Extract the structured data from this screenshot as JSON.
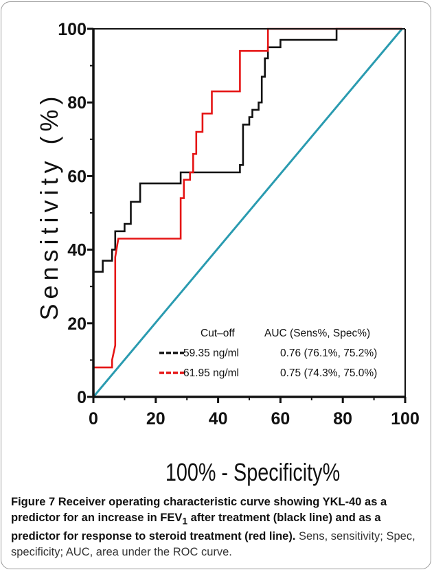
{
  "chart_data": {
    "type": "line",
    "xlabel": "100% - Specificity%",
    "ylabel": "Sensitivity (%)",
    "xlim": [
      0,
      100
    ],
    "ylim": [
      0,
      100
    ],
    "xticks": [
      "0",
      "20",
      "40",
      "60",
      "80",
      "100"
    ],
    "yticks": [
      "0",
      "20",
      "40",
      "60",
      "80",
      "100"
    ],
    "legend": {
      "placement": "bottom-right",
      "header_cutoff": "Cut–off",
      "header_auc": "AUC (Sens%, Spec%)",
      "entries": [
        {
          "cutoff": "59.35 ng/ml",
          "auc": "0.76 (76.1%, 75.2%)",
          "color": "#111111"
        },
        {
          "cutoff": "61.95 ng/ml",
          "auc": "0.75 (74.3%, 75.0%)",
          "color": "#e51515"
        }
      ]
    },
    "series": [
      {
        "color": "#111111",
        "points": [
          [
            0,
            34
          ],
          [
            3,
            34
          ],
          [
            3,
            37
          ],
          [
            6,
            37
          ],
          [
            6,
            40
          ],
          [
            7,
            40
          ],
          [
            7,
            45
          ],
          [
            10,
            45
          ],
          [
            10,
            47
          ],
          [
            12,
            47
          ],
          [
            12,
            53
          ],
          [
            15,
            53
          ],
          [
            15,
            58
          ],
          [
            22,
            58
          ],
          [
            28,
            58
          ],
          [
            28,
            61
          ],
          [
            47,
            61
          ],
          [
            47,
            63
          ],
          [
            48,
            63
          ],
          [
            48,
            74
          ],
          [
            50,
            74
          ],
          [
            50,
            76
          ],
          [
            51,
            76
          ],
          [
            51,
            78
          ],
          [
            53,
            78
          ],
          [
            53,
            80
          ],
          [
            54,
            80
          ],
          [
            54,
            87
          ],
          [
            55,
            87
          ],
          [
            55,
            92
          ],
          [
            56,
            92
          ],
          [
            56,
            95
          ],
          [
            60,
            95
          ],
          [
            60,
            97
          ],
          [
            78,
            97
          ],
          [
            78,
            100
          ],
          [
            99,
            100
          ]
        ]
      },
      {
        "color": "#e51515",
        "points": [
          [
            0,
            8
          ],
          [
            6,
            8
          ],
          [
            6,
            10
          ],
          [
            7,
            14
          ],
          [
            7,
            38
          ],
          [
            8,
            43
          ],
          [
            28,
            43
          ],
          [
            28,
            54
          ],
          [
            29,
            54
          ],
          [
            29,
            59
          ],
          [
            31,
            59
          ],
          [
            31,
            61
          ],
          [
            32,
            61
          ],
          [
            32,
            66
          ],
          [
            33,
            66
          ],
          [
            33,
            72
          ],
          [
            35,
            72
          ],
          [
            35,
            77
          ],
          [
            38,
            77
          ],
          [
            38,
            83
          ],
          [
            42,
            83
          ],
          [
            42,
            83
          ],
          [
            47,
            83
          ],
          [
            47,
            94
          ],
          [
            56,
            94
          ],
          [
            56,
            100
          ],
          [
            99,
            100
          ]
        ]
      },
      {
        "color": "#2a9bb0",
        "points": [
          [
            0,
            0
          ],
          [
            99,
            100
          ]
        ]
      }
    ]
  },
  "caption": {
    "bold_text": "Figure 7 Receiver operating characteristic curve showing YKL-40 as a predictor for an increase in FEV",
    "bold_sub": "1",
    "bold_rest": " after treatment (black line) and as a predictor for response to steroid treatment (red line).",
    "note": "Sens, sensitivity; Spec, specificity; AUC, area under the ROC curve."
  }
}
